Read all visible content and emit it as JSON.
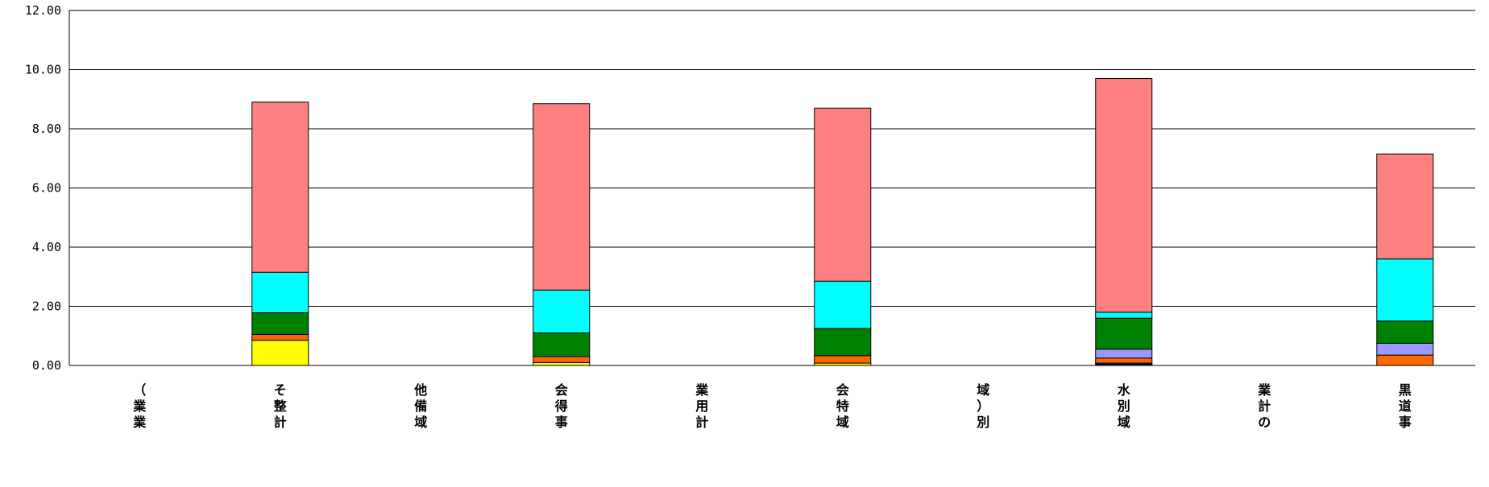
{
  "chart_data": {
    "type": "bar",
    "stacked": true,
    "title": "",
    "xlabel": "",
    "ylabel": "",
    "ylim": [
      0,
      12
    ],
    "yticks": [
      "0.00",
      "2.00",
      "4.00",
      "6.00",
      "8.00",
      "10.00",
      "12.00"
    ],
    "grid": true,
    "categories": [
      [
        "（",
        "業",
        "業"
      ],
      [
        "そ",
        "整",
        "計"
      ],
      [
        "他",
        "備",
        "域"
      ],
      [
        "会",
        "得",
        "事"
      ],
      [
        "業",
        "用",
        "計"
      ],
      [
        "会",
        "特",
        "域"
      ],
      [
        "域",
        "）",
        "別"
      ],
      [
        "水",
        "別",
        "域"
      ],
      [
        "業",
        "計",
        "の"
      ],
      [
        "黒",
        "道",
        "事"
      ]
    ],
    "series": [
      {
        "color": "#000080",
        "values": [
          null,
          0.0,
          null,
          0.0,
          null,
          0.0,
          null,
          0.05,
          null,
          0.0
        ]
      },
      {
        "color": "#FFFF00",
        "values": [
          null,
          0.85,
          null,
          0.1,
          null,
          0.08,
          null,
          0.03,
          null,
          0.0
        ]
      },
      {
        "color": "#FF6600",
        "values": [
          null,
          0.2,
          null,
          0.2,
          null,
          0.25,
          null,
          0.17,
          null,
          0.35
        ]
      },
      {
        "color": "#9999FF",
        "values": [
          null,
          0.0,
          null,
          0.0,
          null,
          0.0,
          null,
          0.3,
          null,
          0.4
        ]
      },
      {
        "color": "#008000",
        "values": [
          null,
          0.73,
          null,
          0.8,
          null,
          0.92,
          null,
          1.05,
          null,
          0.75
        ]
      },
      {
        "color": "#00FFFF",
        "values": [
          null,
          1.37,
          null,
          1.45,
          null,
          1.6,
          null,
          0.2,
          null,
          2.1
        ]
      },
      {
        "color": "#FF8080",
        "values": [
          null,
          5.75,
          null,
          6.3,
          null,
          5.85,
          null,
          7.9,
          null,
          3.55
        ]
      }
    ]
  }
}
